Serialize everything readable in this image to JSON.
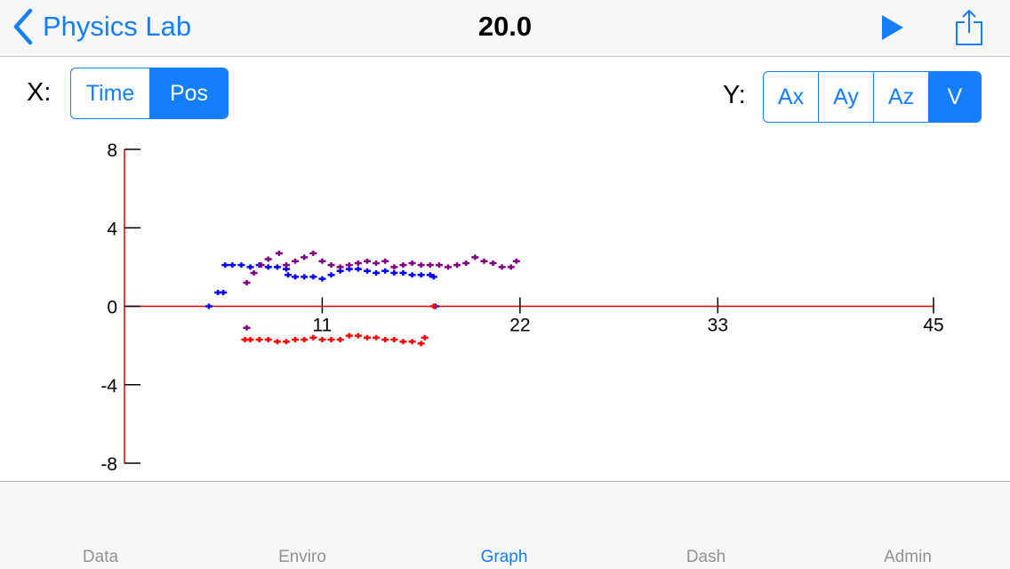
{
  "nav": {
    "back_label": "Physics Lab",
    "title": "20.0"
  },
  "controls": {
    "x_label": "X:",
    "x_options": [
      "Time",
      "Pos"
    ],
    "x_selected": "Pos",
    "y_label": "Y:",
    "y_options": [
      "Ax",
      "Ay",
      "Az",
      "V"
    ],
    "y_selected": "V"
  },
  "chart_data": {
    "type": "scatter",
    "xlim": [
      0,
      45
    ],
    "ylim": [
      -8,
      8
    ],
    "x_ticks": [
      "11",
      "22",
      "33",
      "45"
    ],
    "y_ticks": [
      "8",
      "4",
      "0",
      "-4",
      "-8"
    ],
    "colors": {
      "axes": "#e00000",
      "ticks": "#000000"
    },
    "series": [
      {
        "color": "#0000ff",
        "points": [
          [
            4.7,
            0
          ],
          [
            5.2,
            0.7
          ],
          [
            5.5,
            0.7
          ],
          [
            5.6,
            2.1
          ],
          [
            6,
            2.1
          ],
          [
            6.5,
            2.1
          ],
          [
            7,
            2
          ],
          [
            7.5,
            2.1
          ],
          [
            8,
            2
          ],
          [
            8.5,
            2
          ],
          [
            9,
            1.9
          ],
          [
            9.1,
            1.6
          ],
          [
            9.5,
            1.5
          ],
          [
            10,
            1.5
          ],
          [
            10.5,
            1.5
          ],
          [
            11,
            1.4
          ],
          [
            11.5,
            1.6
          ],
          [
            12,
            1.8
          ],
          [
            12.5,
            1.9
          ],
          [
            13,
            1.9
          ],
          [
            13.5,
            1.8
          ],
          [
            14,
            1.7
          ],
          [
            14.5,
            1.8
          ],
          [
            15,
            1.7
          ],
          [
            15.5,
            1.7
          ],
          [
            16,
            1.6
          ],
          [
            16.5,
            1.6
          ],
          [
            17,
            1.6
          ],
          [
            17.2,
            1.5
          ],
          [
            17.3,
            0
          ]
        ]
      },
      {
        "color": "#800080",
        "points": [
          [
            6.8,
            1.2
          ],
          [
            7.2,
            1.7
          ],
          [
            7.6,
            2.1
          ],
          [
            8,
            2.4
          ],
          [
            8.6,
            2.7
          ],
          [
            9,
            2.1
          ],
          [
            9.5,
            2.3
          ],
          [
            10,
            2.5
          ],
          [
            10.5,
            2.7
          ],
          [
            11,
            2.3
          ],
          [
            11.5,
            2.1
          ],
          [
            12,
            2
          ],
          [
            12.5,
            2.1
          ],
          [
            13,
            2.2
          ],
          [
            13.5,
            2.3
          ],
          [
            14,
            2.2
          ],
          [
            14.5,
            2.3
          ],
          [
            15,
            2
          ],
          [
            15.5,
            2.1
          ],
          [
            16,
            2.2
          ],
          [
            16.5,
            2.1
          ],
          [
            17,
            2.1
          ],
          [
            17.5,
            2.1
          ],
          [
            18,
            2
          ],
          [
            18.5,
            2.1
          ],
          [
            19,
            2.2
          ],
          [
            19.5,
            2.5
          ],
          [
            20,
            2.3
          ],
          [
            20.5,
            2.2
          ],
          [
            21,
            2
          ],
          [
            21.5,
            2
          ],
          [
            21.8,
            2.3
          ],
          [
            6.8,
            -1.1
          ]
        ]
      },
      {
        "color": "#ff0000",
        "points": [
          [
            6.7,
            -1.7
          ],
          [
            7,
            -1.7
          ],
          [
            7.5,
            -1.7
          ],
          [
            8,
            -1.7
          ],
          [
            8.5,
            -1.8
          ],
          [
            9,
            -1.8
          ],
          [
            9.5,
            -1.7
          ],
          [
            10,
            -1.7
          ],
          [
            10.5,
            -1.6
          ],
          [
            11,
            -1.7
          ],
          [
            11.5,
            -1.7
          ],
          [
            12,
            -1.7
          ],
          [
            12.5,
            -1.5
          ],
          [
            13,
            -1.5
          ],
          [
            13.5,
            -1.6
          ],
          [
            14,
            -1.6
          ],
          [
            14.5,
            -1.7
          ],
          [
            15,
            -1.7
          ],
          [
            15.5,
            -1.8
          ],
          [
            16,
            -1.8
          ],
          [
            16.5,
            -1.9
          ],
          [
            16.7,
            -1.6
          ],
          [
            17.2,
            0
          ]
        ]
      }
    ]
  },
  "tabs": [
    "Data",
    "Enviro",
    "Graph",
    "Dash",
    "Admin"
  ],
  "selected_tab": "Graph"
}
